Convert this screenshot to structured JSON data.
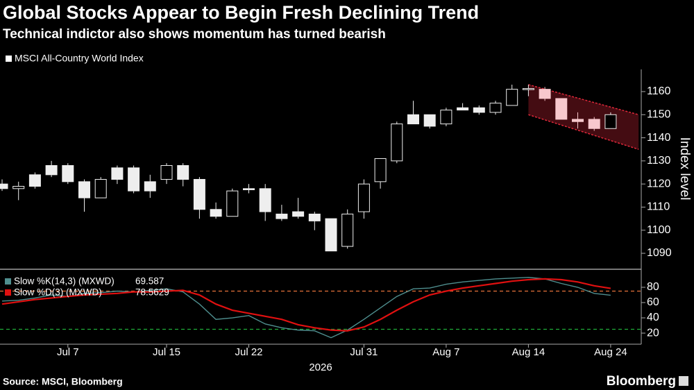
{
  "chart_data": [
    {
      "type": "candlestick",
      "title": "Global Stocks Appear to Begin Fresh Declining Trend",
      "subtitle": "Technical indictor also shows momentum has turned bearish",
      "legend": "MSCI All-Country World Index",
      "ylabel": "Index level",
      "xlabel": "2026",
      "categories": [
        null,
        null,
        null,
        null,
        "Jul 7",
        null,
        null,
        null,
        null,
        null,
        "Jul 15",
        null,
        null,
        null,
        null,
        "Jul 22",
        null,
        null,
        null,
        null,
        null,
        null,
        "Jul 31",
        null,
        null,
        null,
        null,
        "Aug 7",
        null,
        null,
        null,
        null,
        "Aug 14",
        null,
        null,
        null,
        null,
        "Aug 24"
      ],
      "open": [
        1120,
        1118,
        1124,
        1128,
        1128,
        1121,
        1114,
        1127,
        1127,
        1121,
        1122,
        1128,
        1122,
        1109,
        1106,
        1118,
        1118,
        1107,
        1108,
        1107,
        1105,
        1093,
        1108,
        1121,
        1130,
        1150,
        1150,
        1146,
        1153,
        1153,
        1151,
        1154,
        1161,
        1161,
        1157,
        1148,
        1148,
        1144
      ],
      "high": [
        1122,
        1121,
        1125,
        1130,
        1129,
        1122,
        1123,
        1128,
        1128,
        1124,
        1129,
        1129,
        1123,
        1112,
        1118,
        1120,
        1120,
        1111,
        1114,
        1108,
        1105,
        1109,
        1122,
        1131,
        1147,
        1156,
        1150,
        1153,
        1155,
        1154,
        1156,
        1163,
        1163,
        1162,
        1157,
        1151,
        1149,
        1151
      ],
      "low": [
        1117,
        1113,
        1118,
        1123,
        1120,
        1108,
        1114,
        1120,
        1116,
        1114,
        1120,
        1119,
        1105,
        1105,
        1106,
        1116,
        1104,
        1104,
        1105,
        1100,
        1091,
        1092,
        1105,
        1118,
        1129,
        1146,
        1144,
        1145,
        1152,
        1150,
        1150,
        1154,
        1158,
        1156,
        1148,
        1144,
        1143,
        1144
      ],
      "close": [
        1118,
        1119,
        1119,
        1124,
        1121,
        1114,
        1122,
        1122,
        1117,
        1117,
        1128,
        1122,
        1109,
        1106,
        1117,
        1117.5,
        1108,
        1105,
        1106,
        1104,
        1091,
        1107,
        1120,
        1131,
        1146,
        1146,
        1145,
        1152,
        1152,
        1151,
        1155,
        1161,
        1161.3,
        1157,
        1148,
        1147,
        1144,
        1150
      ],
      "up_color": "#000000",
      "down_color": "#eeeeee",
      "highlight_color": "#f7c8cd",
      "highlighted": [
        33,
        34,
        35,
        36
      ],
      "channel": {
        "x": [
          32,
          38.7
        ],
        "upper": [
          1163,
          1150
        ],
        "lower": [
          1150,
          1135
        ],
        "color": "#e0283a"
      },
      "ylim": [
        1084,
        1169.6
      ],
      "yticks": [
        1090,
        1100,
        1110,
        1120,
        1130,
        1140,
        1150,
        1160
      ]
    },
    {
      "type": "line",
      "series": [
        {
          "name": "Slow %K(14,3) (MXWD)",
          "color": "#4f8f8f",
          "values": [
            62,
            63,
            66,
            70,
            68,
            72,
            73,
            75,
            74,
            76,
            78,
            74,
            58,
            38,
            40,
            43,
            32,
            27,
            24,
            23,
            14,
            24,
            38,
            53,
            68,
            78,
            79,
            84,
            87,
            89,
            91,
            92,
            93,
            91,
            85,
            80,
            72,
            69.587
          ]
        },
        {
          "name": "Slow %D(3) (MXWD)",
          "color": "#e01010",
          "values": [
            58,
            61,
            64,
            66,
            68,
            70,
            71,
            72,
            74,
            74,
            75,
            76,
            70,
            58,
            50,
            46,
            42,
            38,
            31,
            27,
            24,
            23,
            28,
            38,
            50,
            61,
            70,
            75,
            79,
            82,
            85,
            88,
            90,
            91,
            90,
            87,
            82,
            78.5629
          ]
        }
      ],
      "hlines": [
        {
          "value": 75,
          "color": "#e8743a"
        },
        {
          "value": 25,
          "color": "#1fae3a"
        }
      ],
      "ylim": [
        6.4,
        100
      ],
      "yticks": [
        20,
        40,
        60,
        80
      ]
    }
  ],
  "footer": {
    "source": "Source: MSCI, Bloomberg",
    "brand": "Bloomberg"
  }
}
